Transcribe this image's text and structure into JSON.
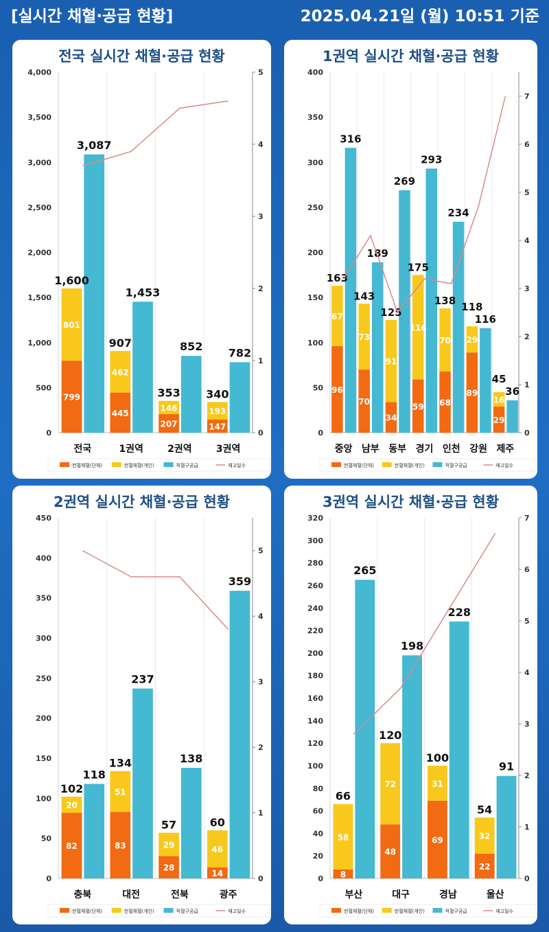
{
  "header": {
    "title": "[실시간 채혈·공급 현황]",
    "timestamp": "2025.04.21일 (월) 10:51 기준"
  },
  "colors": {
    "group": "#f26a12",
    "individual": "#f8c81c",
    "supply": "#45b8d2",
    "stock_days": "#d98a8a",
    "title": "#1e4f86"
  },
  "legend": [
    "헌혈채혈(단체)",
    "헌혈채혈(개인)",
    "적혈구공급",
    "재고일수"
  ],
  "chart_data": [
    {
      "type": "bar",
      "title": "전국 실시간 채혈·공급 현황",
      "categories": [
        "전국",
        "1권역",
        "2권역",
        "3권역"
      ],
      "series": [
        {
          "name": "헌혈채혈(단체)",
          "stack": "collection",
          "values": [
            799,
            445,
            207,
            147
          ]
        },
        {
          "name": "헌혈채혈(개인)",
          "stack": "collection",
          "values": [
            801,
            462,
            146,
            193
          ]
        },
        {
          "name": "적혈구공급",
          "values": [
            3087,
            1453,
            852,
            782
          ]
        },
        {
          "name": "재고일수",
          "type": "line",
          "axis": "right",
          "values": [
            3.7,
            3.9,
            4.5,
            4.6
          ]
        }
      ],
      "collection_totals": [
        1600,
        907,
        353,
        340
      ],
      "ylim": [
        0,
        4000
      ],
      "yticks": [
        0,
        500,
        1000,
        1500,
        2000,
        2500,
        3000,
        3500,
        4000
      ],
      "ytick_labels": [
        "0",
        "500",
        "1,000",
        "1,500",
        "2,000",
        "2,500",
        "3,000",
        "3,500",
        "4,000"
      ],
      "y2lim": [
        0,
        5
      ],
      "y2ticks": [
        0,
        1,
        2,
        3,
        4,
        5
      ],
      "supply_labels": [
        "3,087",
        "1,453",
        "852",
        "782"
      ],
      "total_labels": [
        "1,600",
        "907",
        "353",
        "340"
      ],
      "legend_position": "bottom"
    },
    {
      "type": "bar",
      "title": "1권역 실시간 채혈·공급 현황",
      "categories": [
        "중앙",
        "남부",
        "동부",
        "경기",
        "인천",
        "강원",
        "제주"
      ],
      "series": [
        {
          "name": "헌혈채혈(단체)",
          "stack": "collection",
          "values": [
            96,
            70,
            34,
            59,
            68,
            89,
            29
          ]
        },
        {
          "name": "헌혈채혈(개인)",
          "stack": "collection",
          "values": [
            67,
            73,
            91,
            116,
            70,
            29,
            16
          ]
        },
        {
          "name": "적혈구공급",
          "values": [
            316,
            189,
            269,
            293,
            234,
            116,
            36
          ]
        },
        {
          "name": "재고일수",
          "type": "line",
          "axis": "right",
          "values": [
            3.2,
            4.1,
            2.5,
            3.2,
            3.1,
            4.7,
            7.0
          ]
        }
      ],
      "collection_totals": [
        163,
        143,
        125,
        175,
        138,
        118,
        45
      ],
      "ylim": [
        0,
        400
      ],
      "yticks": [
        0,
        50,
        100,
        150,
        200,
        250,
        300,
        350,
        400
      ],
      "ytick_labels": [
        "0",
        "50",
        "100",
        "150",
        "200",
        "250",
        "300",
        "350",
        "400"
      ],
      "y2lim": [
        0,
        7.5
      ],
      "y2ticks": [
        0,
        1,
        2,
        3,
        4,
        5,
        6,
        7
      ],
      "supply_labels": [
        "316",
        "189",
        "269",
        "293",
        "234",
        "116",
        "36"
      ],
      "total_labels": [
        "163",
        "143",
        "125",
        "175",
        "138",
        "118",
        "45"
      ],
      "legend_position": "bottom"
    },
    {
      "type": "bar",
      "title": "2권역 실시간 채혈·공급 현황",
      "categories": [
        "충북",
        "대전",
        "전북",
        "광주"
      ],
      "series": [
        {
          "name": "헌혈채혈(단체)",
          "stack": "collection",
          "values": [
            82,
            83,
            28,
            14
          ]
        },
        {
          "name": "헌혈채혈(개인)",
          "stack": "collection",
          "values": [
            20,
            51,
            29,
            46
          ]
        },
        {
          "name": "적혈구공급",
          "values": [
            118,
            237,
            138,
            359
          ]
        },
        {
          "name": "재고일수",
          "type": "line",
          "axis": "right",
          "values": [
            5.0,
            4.6,
            4.6,
            3.8
          ]
        }
      ],
      "collection_totals": [
        102,
        134,
        57,
        60
      ],
      "ylim": [
        0,
        450
      ],
      "yticks": [
        0,
        50,
        100,
        150,
        200,
        250,
        300,
        350,
        400,
        450
      ],
      "ytick_labels": [
        "0",
        "50",
        "100",
        "150",
        "200",
        "250",
        "300",
        "350",
        "400",
        "450"
      ],
      "y2lim": [
        0,
        5.5
      ],
      "y2ticks": [
        0,
        1,
        2,
        3,
        4,
        5
      ],
      "supply_labels": [
        "118",
        "237",
        "138",
        "359"
      ],
      "total_labels": [
        "102",
        "134",
        "57",
        "60"
      ],
      "legend_position": "bottom"
    },
    {
      "type": "bar",
      "title": "3권역 실시간 채혈·공급 현황",
      "categories": [
        "부산",
        "대구",
        "경남",
        "울산"
      ],
      "series": [
        {
          "name": "헌혈채혈(단체)",
          "stack": "collection",
          "values": [
            8,
            48,
            69,
            22
          ]
        },
        {
          "name": "헌혈채혈(개인)",
          "stack": "collection",
          "values": [
            58,
            72,
            31,
            32
          ]
        },
        {
          "name": "적혈구공급",
          "values": [
            265,
            198,
            228,
            91
          ]
        },
        {
          "name": "재고일수",
          "type": "line",
          "axis": "right",
          "values": [
            2.8,
            3.7,
            5.2,
            6.7
          ]
        }
      ],
      "collection_totals": [
        66,
        120,
        100,
        54
      ],
      "ylim": [
        0,
        320
      ],
      "yticks": [
        0,
        20,
        40,
        60,
        80,
        100,
        120,
        140,
        160,
        180,
        200,
        220,
        240,
        260,
        280,
        300,
        320
      ],
      "ytick_labels": [
        "0",
        "20",
        "40",
        "60",
        "80",
        "100",
        "120",
        "140",
        "160",
        "180",
        "200",
        "220",
        "240",
        "260",
        "280",
        "300",
        "320"
      ],
      "y2lim": [
        0,
        7
      ],
      "y2ticks": [
        0,
        1,
        2,
        3,
        4,
        5,
        6,
        7
      ],
      "supply_labels": [
        "265",
        "198",
        "228",
        "91"
      ],
      "total_labels": [
        "66",
        "120",
        "100",
        "54"
      ],
      "legend_position": "bottom"
    }
  ]
}
